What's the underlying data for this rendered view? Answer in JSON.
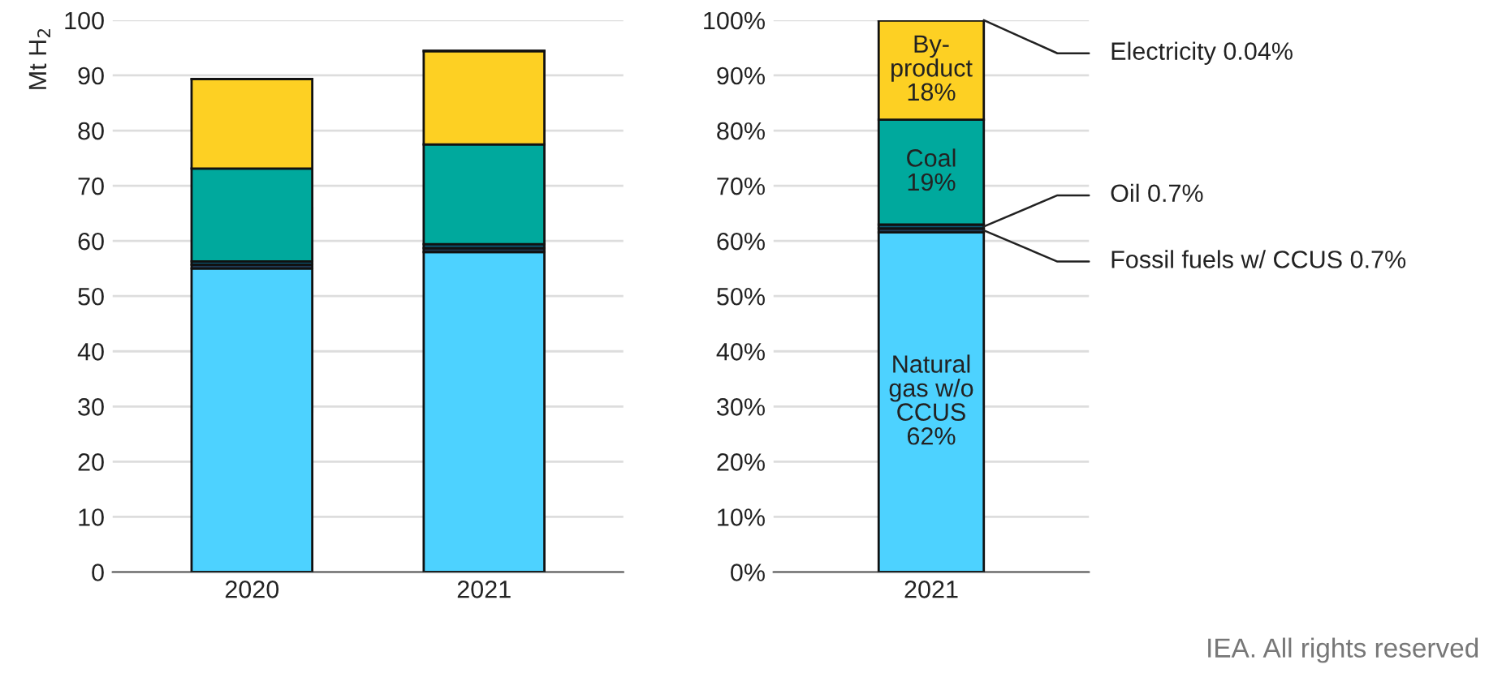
{
  "chart_data": [
    {
      "type": "bar",
      "stacked": true,
      "ylabel": "Mt H$_{2}$",
      "categories": [
        "2020",
        "2021"
      ],
      "ylim": [
        0,
        100
      ],
      "yticks": [
        0,
        10,
        20,
        30,
        40,
        50,
        60,
        70,
        80,
        90,
        100
      ],
      "grid": "y",
      "series": [
        {
          "color": "#4dd2ff",
          "values": [
            55,
            58
          ]
        },
        {
          "color": "#1f3b57",
          "values": [
            0.7,
            0.7
          ]
        },
        {
          "color": "#0b5c7a",
          "values": [
            0.6,
            0.7
          ]
        },
        {
          "color": "#00a99d",
          "values": [
            16.8,
            18.1
          ]
        },
        {
          "color": "#fdd023",
          "values": [
            16.2,
            16.9
          ]
        },
        {
          "color": "#222222",
          "values": [
            0.04,
            0.04
          ]
        }
      ]
    },
    {
      "type": "bar",
      "stacked": true,
      "categories": [
        "2021"
      ],
      "ylim": [
        0,
        100
      ],
      "yticks": [
        {
          "value": 0,
          "label": "0%"
        },
        {
          "value": 10,
          "label": "10%"
        },
        {
          "value": 20,
          "label": "20%"
        },
        {
          "value": 30,
          "label": "30%"
        },
        {
          "value": 40,
          "label": "40%"
        },
        {
          "value": 50,
          "label": "50%"
        },
        {
          "value": 60,
          "label": "60%"
        },
        {
          "value": 70,
          "label": "70%"
        },
        {
          "value": 80,
          "label": "80%"
        },
        {
          "value": 90,
          "label": "90%"
        },
        {
          "value": 100,
          "label": "100%"
        }
      ],
      "grid": "y",
      "series": [
        {
          "color": "#4dd2ff",
          "values": [
            61.56
          ],
          "value_labels": [
            "Natural\ngas w/o\nCCUS\n62%"
          ]
        },
        {
          "color": "#1f3b57",
          "values": [
            0.7
          ],
          "value_labels": [
            "Fossil fuels w/ CCUS 0.7%"
          ]
        },
        {
          "color": "#0b5c7a",
          "values": [
            0.7
          ],
          "value_labels": [
            "Oil 0.7%"
          ]
        },
        {
          "color": "#00a99d",
          "values": [
            19
          ],
          "value_labels": [
            "Coal\n19%"
          ]
        },
        {
          "color": "#fdd023",
          "values": [
            18
          ],
          "value_labels": [
            "By-\nproduct\n18%"
          ]
        },
        {
          "color": "#222222",
          "values": [
            0.04
          ],
          "value_labels": [
            "Electricity 0.04%"
          ]
        }
      ],
      "annotations": [
        "IEA. All rights reserved"
      ]
    }
  ]
}
